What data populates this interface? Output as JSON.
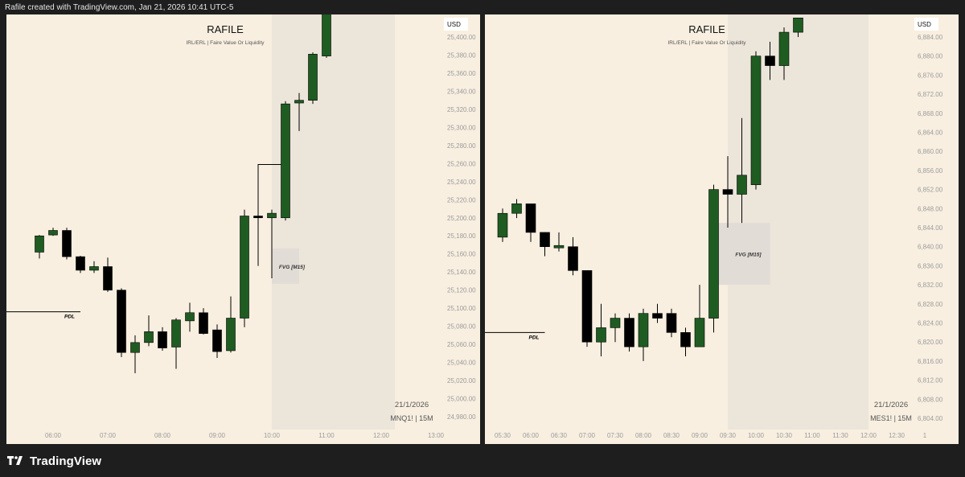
{
  "header": {
    "text": "Rafile created with TradingView.com, Jan 21, 2026 10:41 UTC-5"
  },
  "footer": {
    "brand": "TradingView"
  },
  "colors": {
    "background": "#f8efe0",
    "up": "#1f5c22",
    "down": "#000000",
    "wick": "#000000",
    "session_zone": "#ece5da",
    "fvg_zone": "#e2dcd6",
    "axis_text": "#9b9b9b"
  },
  "chart_data": [
    {
      "type": "candlestick",
      "title": "RAFILE",
      "subtitle": "IRL/ERL | Faire Value Or Liquidity",
      "currency": "USD",
      "date_label": "21/1/2026",
      "symbol_label": "MNQ1! | 15M",
      "grid": false,
      "ylim": [
        24970,
        25430
      ],
      "y_ticks": [
        "25,400.00",
        "25,380.00",
        "25,360.00",
        "25,340.00",
        "25,320.00",
        "25,300.00",
        "25,280.00",
        "25,260.00",
        "25,240.00",
        "25,220.00",
        "25,200.00",
        "25,180.00",
        "25,160.00",
        "25,140.00",
        "25,120.00",
        "25,100.00",
        "25,080.00",
        "25,060.00",
        "25,040.00",
        "25,020.00",
        "25,000.00",
        "24,980.00"
      ],
      "x_ticks": [
        {
          "label": "06:00",
          "t": "06:00"
        },
        {
          "label": "07:00",
          "t": "07:00"
        },
        {
          "label": "08:00",
          "t": "08:00"
        },
        {
          "label": "09:00",
          "t": "09:00"
        },
        {
          "label": "10:00",
          "t": "10:00"
        },
        {
          "label": "11:00",
          "t": "11:00"
        },
        {
          "label": "12:00",
          "t": "12:00"
        },
        {
          "label": "13:00",
          "t": "13:00"
        }
      ],
      "candles": [
        {
          "t": "05:45",
          "o": 25162,
          "h": 25181,
          "l": 25155,
          "c": 25180
        },
        {
          "t": "06:00",
          "o": 25181,
          "h": 25189,
          "l": 25180,
          "c": 25186
        },
        {
          "t": "06:15",
          "o": 25186,
          "h": 25189,
          "l": 25154,
          "c": 25157
        },
        {
          "t": "06:30",
          "o": 25157,
          "h": 25158,
          "l": 25139,
          "c": 25142
        },
        {
          "t": "06:45",
          "o": 25142,
          "h": 25152,
          "l": 25139,
          "c": 25146
        },
        {
          "t": "07:00",
          "o": 25146,
          "h": 25156,
          "l": 25118,
          "c": 25120
        },
        {
          "t": "07:15",
          "o": 25120,
          "h": 25122,
          "l": 25046,
          "c": 25051
        },
        {
          "t": "07:30",
          "o": 25051,
          "h": 25070,
          "l": 25028,
          "c": 25062
        },
        {
          "t": "07:45",
          "o": 25062,
          "h": 25092,
          "l": 25058,
          "c": 25074
        },
        {
          "t": "08:00",
          "o": 25074,
          "h": 25079,
          "l": 25053,
          "c": 25056
        },
        {
          "t": "08:15",
          "o": 25057,
          "h": 25089,
          "l": 25033,
          "c": 25087
        },
        {
          "t": "08:30",
          "o": 25086,
          "h": 25106,
          "l": 25074,
          "c": 25095
        },
        {
          "t": "08:45",
          "o": 25095,
          "h": 25100,
          "l": 25071,
          "c": 25072
        },
        {
          "t": "09:00",
          "o": 25076,
          "h": 25082,
          "l": 25045,
          "c": 25052
        },
        {
          "t": "09:15",
          "o": 25053,
          "h": 25113,
          "l": 25051,
          "c": 25089
        },
        {
          "t": "09:30",
          "o": 25089,
          "h": 25209,
          "l": 25079,
          "c": 25202
        },
        {
          "t": "09:45",
          "o": 25202,
          "h": 25208,
          "l": 25161,
          "c": 25200
        },
        {
          "t": "10:00",
          "o": 25200,
          "h": 25209,
          "l": 25133,
          "c": 25205
        },
        {
          "t": "10:15",
          "o": 25200,
          "h": 25329,
          "l": 25197,
          "c": 25326
        },
        {
          "t": "10:30",
          "o": 25327,
          "h": 25338,
          "l": 25296,
          "c": 25330
        },
        {
          "t": "10:45",
          "o": 25330,
          "h": 25383,
          "l": 25326,
          "c": 25381
        },
        {
          "t": "11:00",
          "o": 25379,
          "h": 25440,
          "l": 25377,
          "c": 25440
        }
      ],
      "zones": [
        {
          "kind": "session",
          "t_start": "10:00",
          "t_end": "12:15"
        },
        {
          "kind": "fvg",
          "label": "FVG [M15]",
          "t_start": "10:00",
          "t_end": "10:30",
          "y_bottom": 25127,
          "y_top": 25166
        }
      ],
      "lines": [
        {
          "label": "PDL",
          "t_start": "05:00",
          "t_end": "06:30",
          "y": 25096
        }
      ],
      "bracket": {
        "t_start": "10:00",
        "t_end": "10:15",
        "y_top": 25259,
        "y_bottom": 25209
      }
    },
    {
      "type": "candlestick",
      "title": "RAFILE",
      "subtitle": "IRL/ERL | Faire Value Or Liquidity",
      "currency": "USD",
      "date_label": "21/1/2026",
      "symbol_label": "MES1! | 15M",
      "grid": false,
      "ylim": [
        6802,
        6887
      ],
      "y_ticks": [
        "6,884.00",
        "6,880.00",
        "6,876.00",
        "6,872.00",
        "6,868.00",
        "6,864.00",
        "6,860.00",
        "6,856.00",
        "6,852.00",
        "6,848.00",
        "6,844.00",
        "6,840.00",
        "6,836.00",
        "6,832.00",
        "6,828.00",
        "6,824.00",
        "6,820.00",
        "6,816.00",
        "6,812.00",
        "6,808.00",
        "6,804.00"
      ],
      "x_ticks": [
        {
          "label": "05:30",
          "t": "05:30"
        },
        {
          "label": "06:00",
          "t": "06:00"
        },
        {
          "label": "06:30",
          "t": "06:30"
        },
        {
          "label": "07:00",
          "t": "07:00"
        },
        {
          "label": "07:30",
          "t": "07:30"
        },
        {
          "label": "08:00",
          "t": "08:00"
        },
        {
          "label": "08:30",
          "t": "08:30"
        },
        {
          "label": "09:00",
          "t": "09:00"
        },
        {
          "label": "09:30",
          "t": "09:30"
        },
        {
          "label": "10:00",
          "t": "10:00"
        },
        {
          "label": "10:30",
          "t": "10:30"
        },
        {
          "label": "11:00",
          "t": "11:00"
        },
        {
          "label": "11:30",
          "t": "11:30"
        },
        {
          "label": "12:00",
          "t": "12:00"
        },
        {
          "label": "12:30",
          "t": "12:30"
        },
        {
          "label": "1",
          "t": "13:00"
        }
      ],
      "candles": [
        {
          "t": "05:30",
          "o": 6842,
          "h": 6848,
          "l": 6841,
          "c": 6847
        },
        {
          "t": "05:45",
          "o": 6847,
          "h": 6850,
          "l": 6846,
          "c": 6849
        },
        {
          "t": "06:00",
          "o": 6849,
          "h": 6849,
          "l": 6841,
          "c": 6843
        },
        {
          "t": "06:15",
          "o": 6843,
          "h": 6843,
          "l": 6838,
          "c": 6840
        },
        {
          "t": "06:30",
          "o": 6840,
          "h": 6843,
          "l": 6839,
          "c": 6840
        },
        {
          "t": "06:45",
          "o": 6840,
          "h": 6842,
          "l": 6834,
          "c": 6835
        },
        {
          "t": "07:00",
          "o": 6835,
          "h": 6835,
          "l": 6819,
          "c": 6820
        },
        {
          "t": "07:15",
          "o": 6820,
          "h": 6828,
          "l": 6817,
          "c": 6823
        },
        {
          "t": "07:30",
          "o": 6823,
          "h": 6826,
          "l": 6820,
          "c": 6825
        },
        {
          "t": "07:45",
          "o": 6825,
          "h": 6826,
          "l": 6818,
          "c": 6819
        },
        {
          "t": "08:00",
          "o": 6819,
          "h": 6827,
          "l": 6816,
          "c": 6826
        },
        {
          "t": "08:15",
          "o": 6826,
          "h": 6828,
          "l": 6824,
          "c": 6825
        },
        {
          "t": "08:30",
          "o": 6826,
          "h": 6827,
          "l": 6821,
          "c": 6822
        },
        {
          "t": "08:45",
          "o": 6822,
          "h": 6823,
          "l": 6817,
          "c": 6819
        },
        {
          "t": "09:00",
          "o": 6819,
          "h": 6832,
          "l": 6819,
          "c": 6825
        },
        {
          "t": "09:15",
          "o": 6825,
          "h": 6853,
          "l": 6822,
          "c": 6852
        },
        {
          "t": "09:30",
          "o": 6852,
          "h": 6859,
          "l": 6844,
          "c": 6851
        },
        {
          "t": "09:45",
          "o": 6851,
          "h": 6867,
          "l": 6845,
          "c": 6855
        },
        {
          "t": "10:00",
          "o": 6853,
          "h": 6881,
          "l": 6852,
          "c": 6880
        },
        {
          "t": "10:15",
          "o": 6880,
          "h": 6883,
          "l": 6875,
          "c": 6878
        },
        {
          "t": "10:30",
          "o": 6878,
          "h": 6886,
          "l": 6875,
          "c": 6885
        },
        {
          "t": "10:45",
          "o": 6885,
          "h": 6888,
          "l": 6884,
          "c": 6888
        }
      ],
      "zones": [
        {
          "kind": "session",
          "t_start": "09:30",
          "t_end": "12:00"
        },
        {
          "kind": "fvg",
          "label": "FVG [M15]",
          "t_start": "09:15",
          "t_end": "10:15",
          "y_bottom": 6832,
          "y_top": 6845
        }
      ],
      "lines": [
        {
          "label": "PDL",
          "t_start": "05:00",
          "t_end": "06:15",
          "y": 6822
        }
      ],
      "bracket": null
    }
  ]
}
